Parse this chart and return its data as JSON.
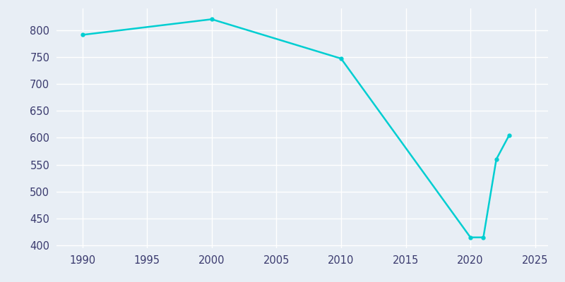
{
  "years": [
    1990,
    2000,
    2010,
    2020,
    2021,
    2022,
    2023
  ],
  "population": [
    791,
    820,
    747,
    415,
    415,
    560,
    605
  ],
  "line_color": "#00CED1",
  "bg_color": "#e8eef5",
  "grid_color": "#ffffff",
  "tick_color": "#3a3a6e",
  "xlim": [
    1988,
    2026
  ],
  "ylim": [
    395,
    840
  ],
  "xticks": [
    1990,
    1995,
    2000,
    2005,
    2010,
    2015,
    2020,
    2025
  ],
  "yticks": [
    400,
    450,
    500,
    550,
    600,
    650,
    700,
    750,
    800
  ]
}
